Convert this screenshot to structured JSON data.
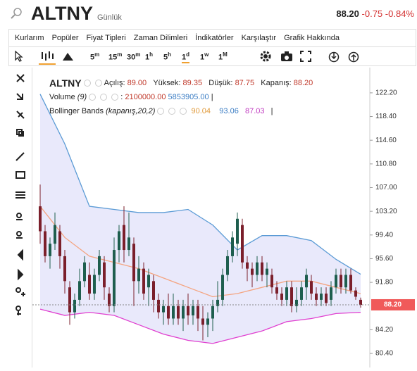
{
  "header": {
    "symbol": "ALTNY",
    "period": "Günlük",
    "price": "88.20",
    "change": "-0.75",
    "change_pct": "-0.84%"
  },
  "menu": [
    "Kurlarım",
    "Popüler",
    "Fiyat Tipleri",
    "Zaman Dilimleri",
    "İndikatörler",
    "Karşılaştır",
    "Grafik Hakkında"
  ],
  "timeframes": [
    {
      "main": "5",
      "sup": "m"
    },
    {
      "main": "15",
      "sup": "m"
    },
    {
      "main": "30",
      "sup": "m"
    },
    {
      "main": "1",
      "sup": "h"
    },
    {
      "main": "5",
      "sup": "h"
    },
    {
      "main": "1",
      "sup": "d"
    },
    {
      "main": "1",
      "sup": "w"
    },
    {
      "main": "1",
      "sup": "M"
    }
  ],
  "legend": {
    "symbol": "ALTNY",
    "open_label": "Açılış:",
    "open": "89.00",
    "high_label": "Yüksek:",
    "high": "89.35",
    "low_label": "Düşük:",
    "low": "87.75",
    "close_label": "Kapanış:",
    "close": "88.20",
    "volume_name": "Volume",
    "volume_param": "(9)",
    "volume_value": "2100000.00",
    "volume_avg": "5853905.00",
    "bb_name": "Bollinger Bands",
    "bb_param": "(kapanış,20,2)",
    "bb_middle": "90.04",
    "bb_upper": "93.06",
    "bb_lower": "87.03"
  },
  "chart_data": {
    "type": "candlestick",
    "open": [
      104,
      100,
      96,
      98,
      100,
      96,
      91,
      87,
      89,
      92,
      93,
      90,
      93,
      95,
      90,
      88,
      97,
      101,
      97,
      98,
      92,
      94,
      91,
      92,
      89,
      87,
      88,
      86,
      88,
      86,
      88,
      86.5,
      88,
      86,
      85,
      86,
      88,
      89,
      93,
      96,
      98,
      101,
      95,
      94,
      93,
      95,
      93,
      93,
      91,
      90,
      89,
      91,
      88,
      89,
      91,
      92,
      90,
      89,
      90,
      89,
      91,
      93,
      91,
      93,
      90.5,
      89
    ],
    "high": [
      107.5,
      101,
      99,
      103,
      101,
      97,
      92,
      90,
      94,
      96,
      95,
      94,
      97,
      96,
      91,
      99,
      101,
      104,
      103,
      99,
      96,
      95,
      94,
      93,
      90,
      89,
      90,
      90,
      89,
      89,
      90,
      89,
      89,
      88,
      87,
      89,
      92,
      94,
      97,
      100,
      103,
      102,
      96,
      95,
      96,
      96,
      95,
      94,
      92,
      91,
      92,
      92,
      91,
      92,
      94,
      93,
      91,
      91,
      91,
      92,
      94,
      94,
      94,
      94,
      91,
      89.35
    ],
    "low": [
      98,
      95,
      94,
      97,
      94,
      90,
      85,
      86,
      88,
      91,
      89,
      89,
      92,
      89,
      87,
      87,
      95,
      95,
      96,
      88,
      90,
      89,
      88,
      87,
      86,
      85,
      85,
      85,
      85,
      84,
      85,
      85,
      84,
      82.5,
      83,
      84,
      87,
      88,
      92,
      95,
      96,
      94,
      92,
      91,
      92,
      92,
      91,
      90,
      89,
      88,
      88,
      87,
      87,
      88,
      89,
      89,
      88,
      88,
      88,
      88,
      90,
      90,
      90,
      90,
      89,
      87.75
    ],
    "close": [
      100,
      96,
      98,
      101,
      96,
      92,
      87,
      89,
      92,
      95,
      90,
      93,
      96,
      91,
      88,
      97,
      100,
      97,
      99,
      92,
      94,
      90,
      93,
      89,
      87,
      88,
      86,
      88,
      86,
      88,
      86.5,
      88,
      86,
      85,
      86,
      88,
      89,
      93,
      96,
      99,
      102,
      95,
      94,
      93,
      95,
      93,
      94,
      91,
      90,
      89,
      91,
      88,
      89,
      91,
      93,
      90,
      89,
      90,
      88.5,
      91,
      93,
      91,
      93,
      90.5,
      89.5,
      88.2
    ],
    "up_color": "#1e5e4e",
    "down_color": "#7b1f2b",
    "bands": {
      "x": [
        0,
        5,
        10,
        15,
        20,
        25,
        30,
        35,
        40,
        45,
        50,
        55,
        60,
        65
      ],
      "upper": [
        122,
        114,
        104,
        103.5,
        103,
        103,
        103.5,
        101,
        97,
        99.3,
        99.3,
        98.5,
        95.5,
        93.1
      ],
      "middle": [
        104,
        99,
        96,
        95,
        94,
        92.5,
        91,
        89.5,
        90,
        91,
        92,
        92,
        91,
        90
      ],
      "lower": [
        87.5,
        86.5,
        87,
        86.5,
        85,
        83.5,
        82.5,
        82,
        83,
        84,
        85.5,
        86,
        86.8,
        87
      ],
      "upper_color": "#5b9bd5",
      "middle_color": "#f4a582",
      "lower_color": "#e040d0",
      "fill": "#e4e4fa"
    },
    "last_price": {
      "value": 88.2,
      "label": "88.20"
    },
    "ylim": [
      78.6,
      125.8
    ],
    "yticks": [
      {
        "value": 122.2,
        "label": "122.20"
      },
      {
        "value": 118.4,
        "label": "118.40"
      },
      {
        "value": 114.6,
        "label": "114.60"
      },
      {
        "value": 110.8,
        "label": "110.80"
      },
      {
        "value": 107,
        "label": "107.00"
      },
      {
        "value": 103.2,
        "label": "103.20"
      },
      {
        "value": 99.4,
        "label": "99.40"
      },
      {
        "value": 95.6,
        "label": "95.60"
      },
      {
        "value": 91.8,
        "label": "91.80"
      },
      {
        "value": 84.2,
        "label": "84.20"
      },
      {
        "value": 80.4,
        "label": "80.40"
      }
    ]
  }
}
